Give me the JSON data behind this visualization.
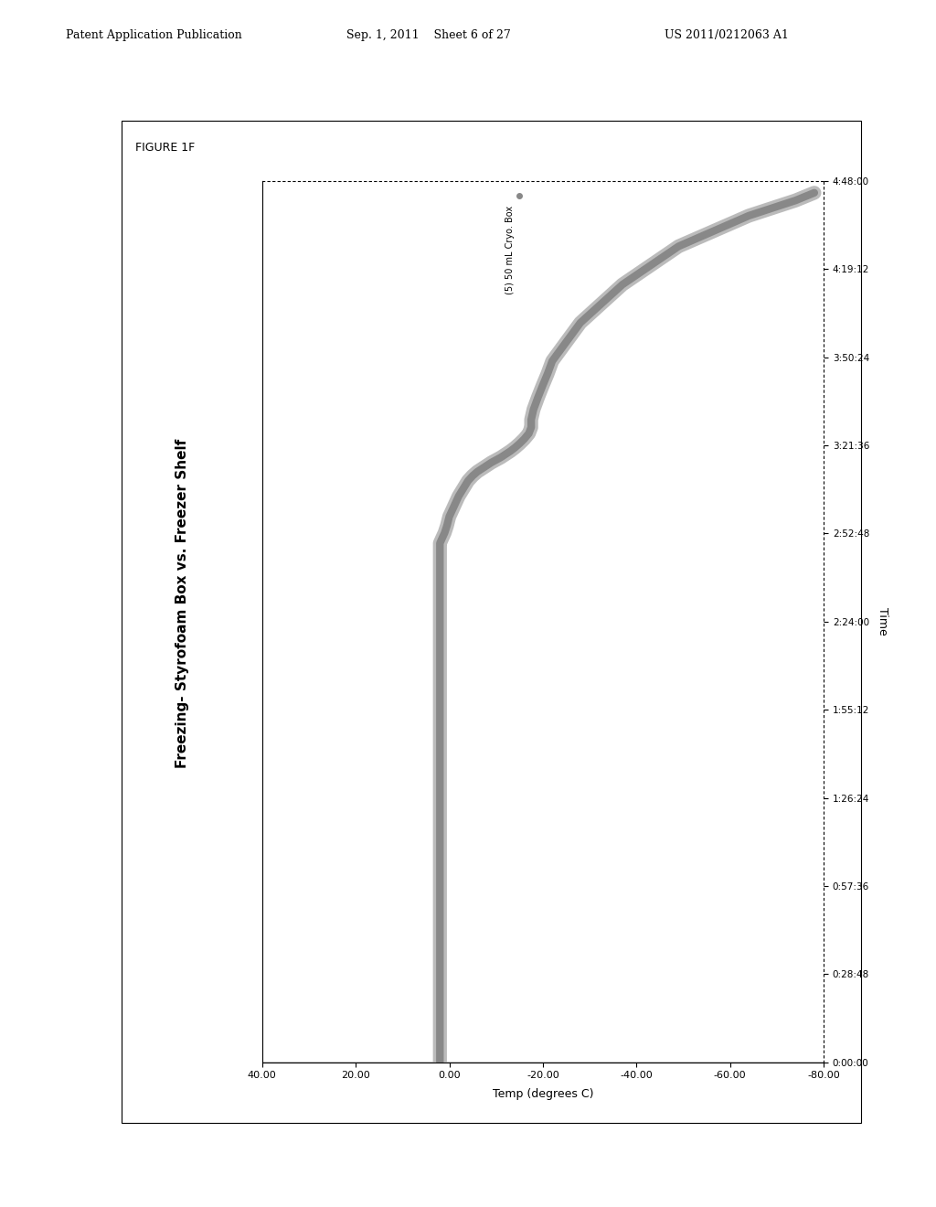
{
  "title": "Freezing- Styrofoam Box vs. Freezer Shelf",
  "figure_label": "FIGURE 1F",
  "xlabel": "Temp (degrees C)",
  "ylabel": "Time",
  "x_tick_values": [
    40.0,
    20.0,
    0.0,
    -20.0,
    -40.0,
    -60.0,
    -80.0
  ],
  "x_tick_labels": [
    "40.00",
    "20.00",
    "0.00",
    "-20.00",
    "-40.00",
    "-60.00",
    "-80.00"
  ],
  "y_tick_labels": [
    "0:00:00",
    "0:28:48",
    "0:57:36",
    "1:26:24",
    "1:55:12",
    "2:24:00",
    "2:52:48",
    "3:21:36",
    "3:50:24",
    "4:19:12",
    "4:48:00"
  ],
  "y_tick_values": [
    0,
    1728,
    3456,
    5184,
    6912,
    8640,
    10368,
    12096,
    13824,
    15552,
    17280
  ],
  "legend_label": "(5) 50 mL Cryo. Box",
  "xlim": [
    40,
    -80
  ],
  "ylim": [
    0,
    17280
  ],
  "background_color": "#ffffff",
  "plot_bg_color": "#ffffff",
  "line_color": "#999999",
  "line_width": 6,
  "header_left": "Patent Application Publication",
  "header_center": "Sep. 1, 2011    Sheet 6 of 27",
  "header_right": "US 2011/0212063 A1",
  "curve_data_x": [
    2,
    2,
    2,
    2,
    2,
    2,
    2,
    2,
    2,
    2,
    2,
    2,
    2,
    2,
    2,
    2,
    2,
    2,
    2,
    2,
    2,
    2,
    2,
    2,
    2,
    2,
    2,
    2,
    2,
    2,
    2,
    2,
    2,
    2,
    2,
    2,
    2,
    2,
    2,
    2,
    2,
    2,
    2,
    2,
    2,
    2,
    2,
    2,
    2,
    2,
    2,
    2,
    2,
    2,
    2,
    2,
    2,
    2,
    2,
    2,
    1.5,
    1,
    0.5,
    0,
    -1,
    -2,
    -3,
    -4,
    -5,
    -6,
    -7,
    -8,
    -9,
    -10,
    -11,
    -12,
    -13,
    -14,
    -15,
    -16,
    -17,
    -17.5,
    -17.5,
    -18,
    -19,
    -20,
    -21,
    -22,
    -24,
    -26,
    -28,
    -31,
    -34,
    -37,
    -41,
    -45,
    -49,
    -54,
    -59,
    -64,
    -69,
    -74,
    -78
  ],
  "curve_data_y": [
    0,
    172,
    345,
    517,
    690,
    862,
    1035,
    1207,
    1380,
    1552,
    1725,
    1897,
    2070,
    2242,
    2415,
    2587,
    2760,
    2932,
    3105,
    3277,
    3450,
    3622,
    3795,
    3967,
    4140,
    4312,
    4485,
    4657,
    4830,
    5002,
    5175,
    5347,
    5520,
    5692,
    5865,
    6037,
    6210,
    6382,
    6555,
    6727,
    6900,
    7072,
    7245,
    7417,
    7590,
    7762,
    7935,
    8107,
    8280,
    8452,
    8625,
    8797,
    8970,
    9142,
    9315,
    9487,
    9660,
    9832,
    10005,
    10177,
    10280,
    10380,
    10520,
    10700,
    10900,
    11100,
    11250,
    11400,
    11500,
    11580,
    11640,
    11700,
    11760,
    11810,
    11860,
    11920,
    11980,
    12050,
    12130,
    12220,
    12330,
    12450,
    12600,
    12800,
    13050,
    13280,
    13500,
    13750,
    14000,
    14250,
    14500,
    14750,
    15000,
    15250,
    15500,
    15750,
    16000,
    16200,
    16400,
    16600,
    16750,
    16900,
    17050
  ]
}
